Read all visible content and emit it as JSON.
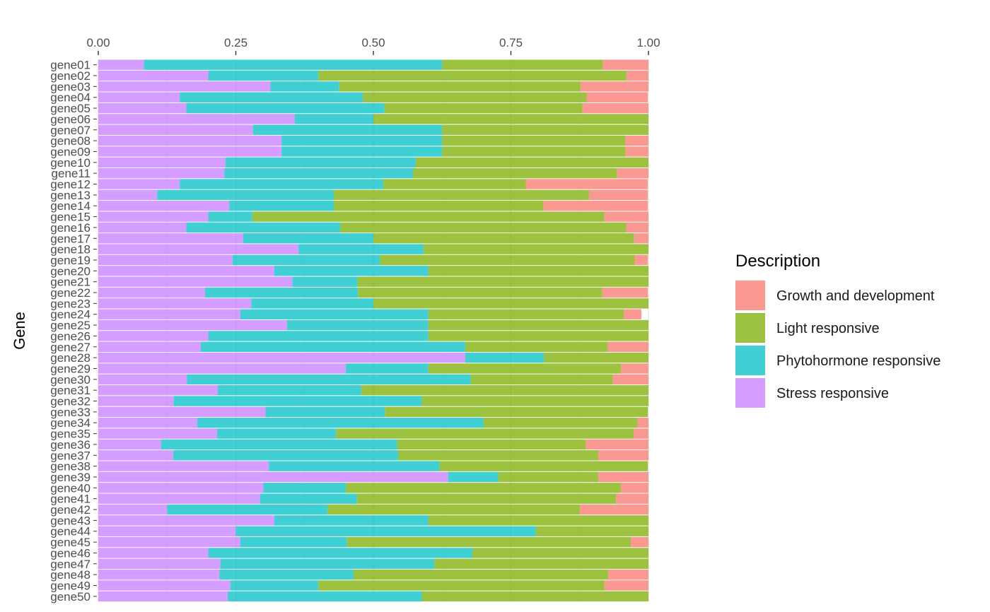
{
  "chart_data": {
    "type": "bar",
    "orientation": "horizontal",
    "stacked": "percent",
    "xlabel": "",
    "ylabel": "Gene",
    "xlim": [
      0,
      1
    ],
    "xticks": [
      "0.00",
      "0.25",
      "0.50",
      "0.75",
      "1.00"
    ],
    "xtick_values": [
      0,
      0.25,
      0.5,
      0.75,
      1.0
    ],
    "grid": true,
    "legend_position": "right",
    "legend_title": "Description",
    "categories": [
      "gene01",
      "gene02",
      "gene03",
      "gene04",
      "gene05",
      "gene06",
      "gene07",
      "gene08",
      "gene09",
      "gene10",
      "gene11",
      "gene12",
      "gene13",
      "gene14",
      "gene15",
      "gene16",
      "gene17",
      "gene18",
      "gene19",
      "gene20",
      "gene21",
      "gene22",
      "gene23",
      "gene24",
      "gene25",
      "gene26",
      "gene27",
      "gene28",
      "gene29",
      "gene30",
      "gene31",
      "gene32",
      "gene33",
      "gene34",
      "gene35",
      "gene36",
      "gene37",
      "gene38",
      "gene39",
      "gene40",
      "gene41",
      "gene42",
      "gene43",
      "gene44",
      "gene45",
      "gene46",
      "gene47",
      "gene48",
      "gene49",
      "gene50"
    ],
    "series": [
      {
        "name": "Stress responsive",
        "color": "#C77CFF",
        "values": [
          0.083,
          0.2,
          0.313,
          0.148,
          0.16,
          0.357,
          0.281,
          0.333,
          0.333,
          0.231,
          0.229,
          0.148,
          0.107,
          0.238,
          0.2,
          0.16,
          0.263,
          0.364,
          0.244,
          0.32,
          0.353,
          0.194,
          0.278,
          0.258,
          0.343,
          0.2,
          0.186,
          0.667,
          0.45,
          0.161,
          0.217,
          0.137,
          0.304,
          0.18,
          0.216,
          0.114,
          0.136,
          0.31,
          0.636,
          0.3,
          0.294,
          0.125,
          0.32,
          0.25,
          0.258,
          0.2,
          0.222,
          0.22,
          0.24,
          0.235
        ]
      },
      {
        "name": "Phytohormone responsive",
        "color": "#00BFC4",
        "values": [
          0.542,
          0.2,
          0.125,
          0.333,
          0.36,
          0.143,
          0.344,
          0.292,
          0.292,
          0.346,
          0.343,
          0.37,
          0.321,
          0.19,
          0.08,
          0.28,
          0.237,
          0.227,
          0.268,
          0.28,
          0.118,
          0.278,
          0.222,
          0.342,
          0.257,
          0.4,
          0.481,
          0.143,
          0.15,
          0.516,
          0.261,
          0.451,
          0.217,
          0.52,
          0.216,
          0.429,
          0.409,
          0.31,
          0.091,
          0.15,
          0.176,
          0.292,
          0.28,
          0.545,
          0.194,
          0.48,
          0.389,
          0.244,
          0.16,
          0.353
        ]
      },
      {
        "name": "Light responsive",
        "color": "#7CAE00",
        "values": [
          0.292,
          0.56,
          0.438,
          0.407,
          0.36,
          0.5,
          0.375,
          0.333,
          0.333,
          0.423,
          0.371,
          0.259,
          0.464,
          0.381,
          0.64,
          0.52,
          0.474,
          0.409,
          0.463,
          0.4,
          0.529,
          0.444,
          0.5,
          0.355,
          0.4,
          0.4,
          0.259,
          0.19,
          0.35,
          0.258,
          0.522,
          0.412,
          0.478,
          0.28,
          0.541,
          0.343,
          0.364,
          0.379,
          0.182,
          0.5,
          0.471,
          0.458,
          0.4,
          0.205,
          0.516,
          0.32,
          0.389,
          0.463,
          0.52,
          0.412
        ]
      },
      {
        "name": "Growth and development",
        "color": "#F8766D",
        "values": [
          0.083,
          0.04,
          0.125,
          0.111,
          0.12,
          0,
          0,
          0.042,
          0.042,
          0,
          0.057,
          0.222,
          0.107,
          0.19,
          0.08,
          0.04,
          0.026,
          0,
          0.024,
          0,
          0,
          0.083,
          0,
          0.032,
          0,
          0,
          0.074,
          0,
          0.05,
          0.065,
          0,
          0,
          0,
          0.02,
          0.027,
          0.114,
          0.091,
          0,
          0.091,
          0.05,
          0.059,
          0.125,
          0,
          0,
          0.032,
          0,
          0,
          0.073,
          0.08,
          0
        ]
      }
    ],
    "legend_order": [
      "Growth and development",
      "Light responsive",
      "Phytohormone responsive",
      "Stress responsive"
    ]
  }
}
